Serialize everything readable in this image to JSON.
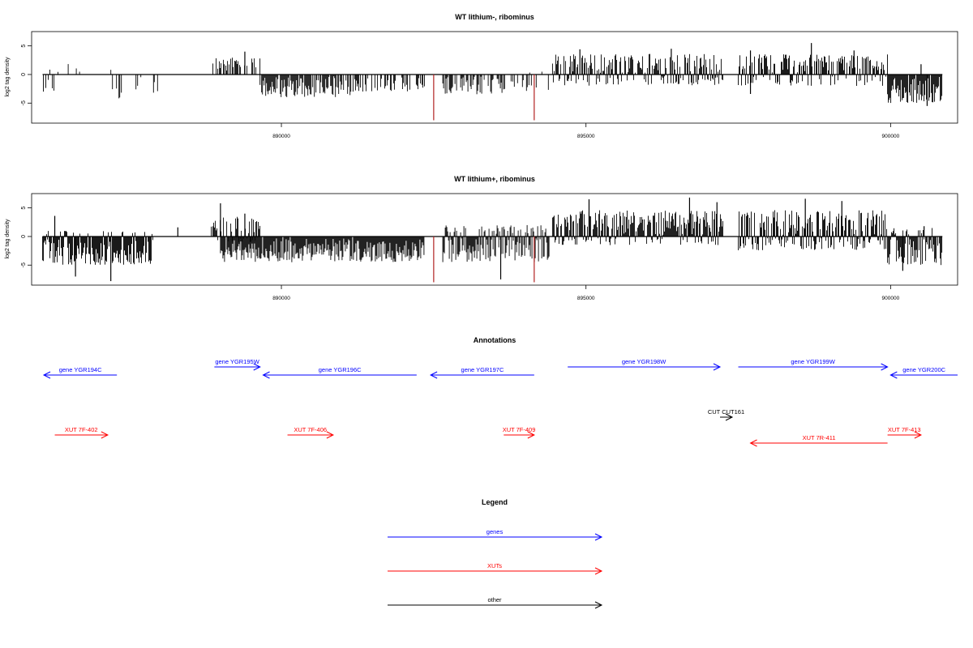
{
  "chart_data": [
    {
      "type": "bar",
      "title": "WT lithium-, ribominus",
      "ylabel": "log2 tag density",
      "xlabel": "",
      "xlim": [
        885900,
        901100
      ],
      "ylim": [
        -8.5,
        7.5
      ],
      "grid": false,
      "x_ticks": [
        890000,
        895000,
        900000
      ],
      "y_ticks": [
        -5,
        0,
        5
      ],
      "series": [
        {
          "color": "#000000",
          "bars": [
            {
              "x0": 886080,
              "x1": 886400,
              "min": -3.0,
              "max": 1.0,
              "density": 0.35
            },
            {
              "x0": 886500,
              "x1": 886700,
              "min": -1.5,
              "max": 2.0,
              "density": 0.3
            },
            {
              "x0": 887200,
              "x1": 887400,
              "min": -4.3,
              "max": 2.0,
              "density": 0.3
            },
            {
              "x0": 887600,
              "x1": 887700,
              "min": -2.6,
              "max": 2.0,
              "density": 0.3
            },
            {
              "x0": 887900,
              "x1": 888000,
              "min": -3.7,
              "max": 0.0,
              "density": 0.4
            },
            {
              "x0": 888850,
              "x1": 889650,
              "min": -0.5,
              "max": 3.0,
              "density": 0.6
            },
            {
              "x0": 889650,
              "x1": 891150,
              "min": -4.0,
              "max": 0.0,
              "density": 0.8
            },
            {
              "x0": 891150,
              "x1": 892350,
              "min": -3.0,
              "max": 0.0,
              "density": 0.5
            },
            {
              "x0": 892650,
              "x1": 893650,
              "min": -3.5,
              "max": 0.0,
              "density": 0.6
            },
            {
              "x0": 893650,
              "x1": 894400,
              "min": -3.0,
              "max": 1.0,
              "density": 0.4
            },
            {
              "x0": 894450,
              "x1": 897250,
              "min": -2.0,
              "max": 3.6,
              "density": 0.85
            },
            {
              "x0": 897500,
              "x1": 899950,
              "min": -2.0,
              "max": 3.6,
              "density": 0.85
            },
            {
              "x0": 899950,
              "x1": 900850,
              "min": -5.0,
              "max": 0.0,
              "density": 1.0
            }
          ],
          "peaks": [
            {
              "x": 889400,
              "y": 4.0
            },
            {
              "x": 896400,
              "y": 4.5
            },
            {
              "x": 897700,
              "y": 4.2
            },
            {
              "x": 898700,
              "y": 5.5
            },
            {
              "x": 899400,
              "y": 4.2
            },
            {
              "x": 900500,
              "y": 1.8
            },
            {
              "x": 894900,
              "y": 4.4
            },
            {
              "x": 897700,
              "y": -3.4
            },
            {
              "x": 900600,
              "y": -5.5
            }
          ]
        },
        {
          "color": "#b22222",
          "bars": [],
          "peaks": [
            {
              "x": 892500,
              "y": -8.0
            },
            {
              "x": 894150,
              "y": -8.0
            }
          ]
        }
      ]
    },
    {
      "type": "bar",
      "title": "WT lithium+, ribominus",
      "ylabel": "log2 tag density",
      "xlabel": "",
      "xlim": [
        885900,
        901100
      ],
      "ylim": [
        -8.5,
        7.5
      ],
      "grid": false,
      "x_ticks": [
        890000,
        895000,
        900000
      ],
      "y_ticks": [
        -5,
        0,
        5
      ],
      "series": [
        {
          "color": "#000000",
          "bars": [
            {
              "x0": 886080,
              "x1": 887900,
              "min": -5.0,
              "max": 1.0,
              "density": 1.0
            },
            {
              "x0": 888850,
              "x1": 889650,
              "min": -1.0,
              "max": 3.5,
              "density": 0.7
            },
            {
              "x0": 889000,
              "x1": 892350,
              "min": -4.5,
              "max": 0.0,
              "density": 1.0
            },
            {
              "x0": 892650,
              "x1": 894400,
              "min": -4.5,
              "max": 2.0,
              "density": 1.0
            },
            {
              "x0": 894450,
              "x1": 897250,
              "min": -1.5,
              "max": 4.6,
              "density": 1.0
            },
            {
              "x0": 897500,
              "x1": 899950,
              "min": -2.5,
              "max": 4.6,
              "density": 1.0
            },
            {
              "x0": 899950,
              "x1": 900850,
              "min": -5.0,
              "max": 1.5,
              "density": 1.0
            }
          ],
          "peaks": [
            {
              "x": 886280,
              "y": 3.6
            },
            {
              "x": 886620,
              "y": -7.0
            },
            {
              "x": 887200,
              "y": -7.8
            },
            {
              "x": 888300,
              "y": 1.6
            },
            {
              "x": 889000,
              "y": 5.8
            },
            {
              "x": 889400,
              "y": 4.0
            },
            {
              "x": 895050,
              "y": 6.5
            },
            {
              "x": 896700,
              "y": 6.8
            },
            {
              "x": 897150,
              "y": 6.0
            },
            {
              "x": 898600,
              "y": 6.6
            },
            {
              "x": 899200,
              "y": 6.2
            },
            {
              "x": 900550,
              "y": 1.8
            },
            {
              "x": 893600,
              "y": -7.5
            },
            {
              "x": 900200,
              "y": -6.0
            }
          ]
        },
        {
          "color": "#b22222",
          "bars": [],
          "peaks": [
            {
              "x": 892500,
              "y": -8.0
            },
            {
              "x": 894150,
              "y": -8.0
            }
          ]
        }
      ]
    }
  ],
  "annotations": {
    "title": "Annotations",
    "genes": [
      {
        "label": "gene YGR194C",
        "x_start": 887300,
        "x_end": 886100,
        "row": 1
      },
      {
        "label": "gene YGR195W",
        "x_start": 888900,
        "x_end": 889650,
        "row": 0
      },
      {
        "label": "gene YGR196C",
        "x_start": 892220,
        "x_end": 889700,
        "row": 1
      },
      {
        "label": "gene YGR197C",
        "x_start": 894150,
        "x_end": 892450,
        "row": 1
      },
      {
        "label": "gene YGR198W",
        "x_start": 894700,
        "x_end": 897200,
        "row": 0
      },
      {
        "label": "gene YGR199W",
        "x_start": 897500,
        "x_end": 899950,
        "row": 0
      },
      {
        "label": "gene YGR200C",
        "x_start": 901100,
        "x_end": 900000,
        "row": 1
      }
    ],
    "xuts": [
      {
        "label": "XUT 7F-402",
        "x_start": 886280,
        "x_end": 887150,
        "row": 0
      },
      {
        "label": "XUT 7F-406",
        "x_start": 890100,
        "x_end": 890850,
        "row": 0
      },
      {
        "label": "XUT 7F-409",
        "x_start": 893650,
        "x_end": 894150,
        "row": 0
      },
      {
        "label": "XUT 7R-411",
        "x_start": 899950,
        "x_end": 897700,
        "row": 1
      },
      {
        "label": "XUT 7F-413",
        "x_start": 899950,
        "x_end": 900500,
        "row": 0
      }
    ],
    "other": [
      {
        "label": "CUT CUT161",
        "x_start": 897200,
        "x_end": 897400,
        "row": 0
      }
    ]
  },
  "legend": {
    "title": "Legend",
    "items": [
      {
        "label": "genes",
        "color": "#0000ff"
      },
      {
        "label": "XUTs",
        "color": "#ff0000"
      },
      {
        "label": "other",
        "color": "#000000"
      }
    ]
  }
}
